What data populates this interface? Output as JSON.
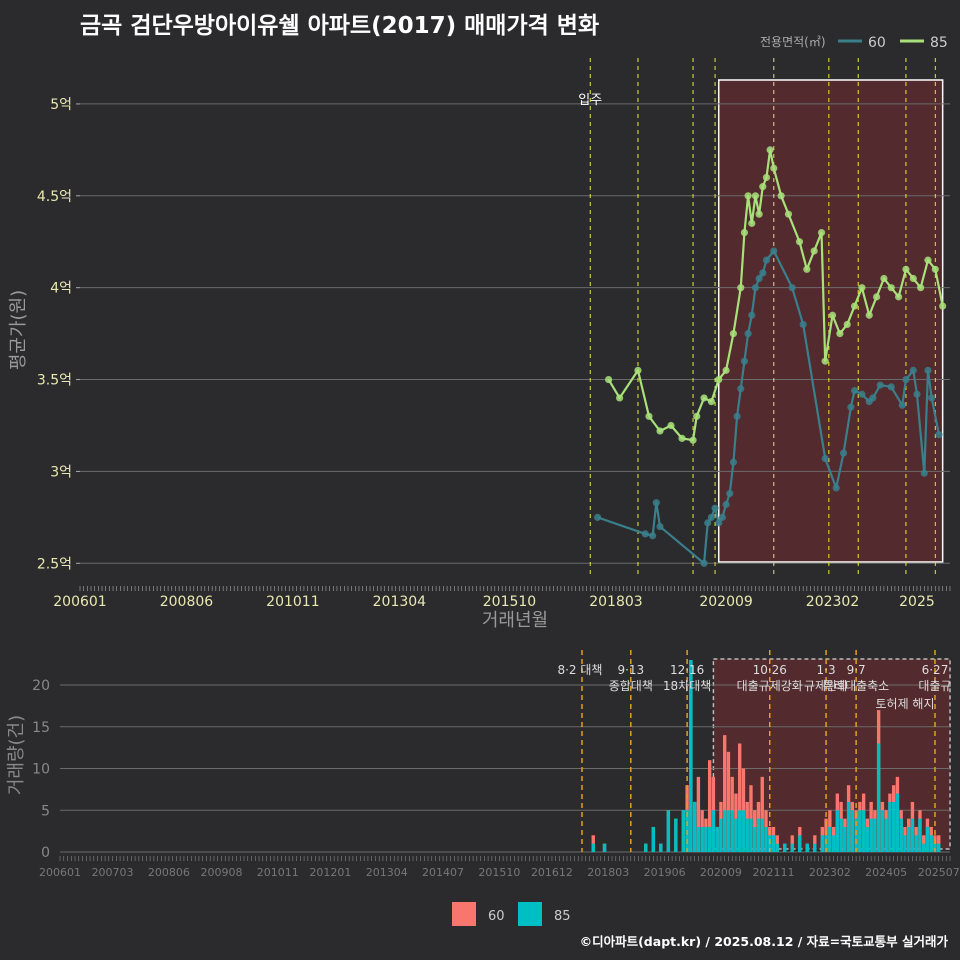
{
  "title": "금곡 검단우방아이유쉘 아파트(2017) 매매가격 변화",
  "footer": "©디아파트(dapt.kr) / 2025.08.12 / 자료=국토교통부 실거래가",
  "colors": {
    "background": "#2b2b2d",
    "grid": "#6b6b6b",
    "series_60_line": "#3a7f8c",
    "series_85_line": "#a8e07a",
    "bar_60": "#f8766d",
    "bar_85": "#00bfc4",
    "policy_line": "#e8e83a",
    "policy_line_vol": "#e0a020",
    "highlight_fill": "#5a2a2e",
    "highlight_border": "#ffffff"
  },
  "chart_data": [
    {
      "type": "line",
      "title": "금곡 검단우방아이유쉘 아파트(2017) 매매가격 변화",
      "xlabel": "거래년월",
      "ylabel": "평균가(원)",
      "ylim": [
        2.42,
        5.25
      ],
      "y_ticks": [
        2.5,
        3,
        3.5,
        4,
        4.5,
        5
      ],
      "y_tick_labels": [
        "2.5억",
        "3억",
        "3.5억",
        "4억",
        "4.5억",
        "5억"
      ],
      "x_tick_labels": [
        "200601",
        "200806",
        "201011",
        "201304",
        "201510",
        "201803",
        "202009",
        "202302",
        "2025"
      ],
      "legend_title": "전용면적(㎡)",
      "legend_position": "top-right",
      "grid": true,
      "annotation": "입주",
      "policy_lines": [
        "2017-08",
        "2018-09",
        "2019-12",
        "2020-06",
        "2021-10",
        "2023-01",
        "2023-09",
        "2024-10",
        "2025-06"
      ],
      "highlight_period": [
        "2020-07",
        "2025-08"
      ],
      "series": [
        {
          "name": "60",
          "points": [
            [
              "2017-10",
              2.75
            ],
            [
              "2018-11",
              2.66
            ],
            [
              "2019-01",
              2.65
            ],
            [
              "2019-02",
              2.83
            ],
            [
              "2019-03",
              2.7
            ],
            [
              "2020-03",
              2.5
            ],
            [
              "2020-04",
              2.72
            ],
            [
              "2020-05",
              2.75
            ],
            [
              "2020-06",
              2.8
            ],
            [
              "2020-07",
              2.72
            ],
            [
              "2020-08",
              2.75
            ],
            [
              "2020-09",
              2.82
            ],
            [
              "2020-10",
              2.88
            ],
            [
              "2020-11",
              3.05
            ],
            [
              "2020-12",
              3.3
            ],
            [
              "2021-01",
              3.45
            ],
            [
              "2021-02",
              3.6
            ],
            [
              "2021-03",
              3.75
            ],
            [
              "2021-04",
              3.85
            ],
            [
              "2021-05",
              4.0
            ],
            [
              "2021-06",
              4.05
            ],
            [
              "2021-07",
              4.08
            ],
            [
              "2021-08",
              4.15
            ],
            [
              "2021-10",
              4.2
            ],
            [
              "2022-03",
              4.0
            ],
            [
              "2022-06",
              3.8
            ],
            [
              "2022-12",
              3.07
            ],
            [
              "2023-03",
              2.91
            ],
            [
              "2023-05",
              3.1
            ],
            [
              "2023-07",
              3.35
            ],
            [
              "2023-08",
              3.44
            ],
            [
              "2023-10",
              3.42
            ],
            [
              "2023-12",
              3.38
            ],
            [
              "2024-01",
              3.4
            ],
            [
              "2024-03",
              3.47
            ],
            [
              "2024-06",
              3.46
            ],
            [
              "2024-09",
              3.36
            ],
            [
              "2024-10",
              3.5
            ],
            [
              "2024-12",
              3.55
            ],
            [
              "2025-01",
              3.42
            ],
            [
              "2025-03",
              2.99
            ],
            [
              "2025-04",
              3.55
            ],
            [
              "2025-05",
              3.4
            ],
            [
              "2025-07",
              3.2
            ]
          ]
        },
        {
          "name": "85",
          "points": [
            [
              "2018-01",
              3.5
            ],
            [
              "2018-04",
              3.4
            ],
            [
              "2018-09",
              3.55
            ],
            [
              "2018-12",
              3.3
            ],
            [
              "2019-03",
              3.22
            ],
            [
              "2019-06",
              3.25
            ],
            [
              "2019-09",
              3.18
            ],
            [
              "2019-12",
              3.17
            ],
            [
              "2020-01",
              3.3
            ],
            [
              "2020-03",
              3.4
            ],
            [
              "2020-05",
              3.38
            ],
            [
              "2020-07",
              3.5
            ],
            [
              "2020-09",
              3.55
            ],
            [
              "2020-11",
              3.75
            ],
            [
              "2021-01",
              4.0
            ],
            [
              "2021-02",
              4.3
            ],
            [
              "2021-03",
              4.5
            ],
            [
              "2021-04",
              4.35
            ],
            [
              "2021-05",
              4.5
            ],
            [
              "2021-06",
              4.4
            ],
            [
              "2021-07",
              4.55
            ],
            [
              "2021-08",
              4.6
            ],
            [
              "2021-09",
              4.75
            ],
            [
              "2021-10",
              4.65
            ],
            [
              "2021-12",
              4.5
            ],
            [
              "2022-02",
              4.4
            ],
            [
              "2022-05",
              4.25
            ],
            [
              "2022-07",
              4.1
            ],
            [
              "2022-09",
              4.2
            ],
            [
              "2022-11",
              4.3
            ],
            [
              "2022-12",
              3.6
            ],
            [
              "2023-02",
              3.85
            ],
            [
              "2023-04",
              3.75
            ],
            [
              "2023-06",
              3.8
            ],
            [
              "2023-08",
              3.9
            ],
            [
              "2023-10",
              4.0
            ],
            [
              "2023-12",
              3.85
            ],
            [
              "2024-02",
              3.95
            ],
            [
              "2024-04",
              4.05
            ],
            [
              "2024-06",
              4.0
            ],
            [
              "2024-08",
              3.95
            ],
            [
              "2024-10",
              4.1
            ],
            [
              "2024-12",
              4.05
            ],
            [
              "2025-02",
              4.0
            ],
            [
              "2025-04",
              4.15
            ],
            [
              "2025-06",
              4.1
            ],
            [
              "2025-08",
              3.9
            ]
          ]
        }
      ]
    },
    {
      "type": "bar",
      "ylabel": "거래량(건)",
      "ylim": [
        0,
        23
      ],
      "y_ticks": [
        0,
        5,
        10,
        15,
        20
      ],
      "y_tick_labels": [
        "0",
        "5",
        "10",
        "15",
        "20"
      ],
      "x_tick_labels": [
        "200601",
        "200703",
        "200806",
        "200908",
        "201011",
        "201201",
        "201304",
        "201407",
        "201510",
        "201612",
        "201803",
        "201906",
        "202009",
        "202111",
        "202302",
        "202405",
        "202507"
      ],
      "legend_position": "bottom",
      "policy_events": [
        {
          "date": "2017-08",
          "label": "8·2 대책"
        },
        {
          "date": "2018-09",
          "label": "9·13\n종합대책"
        },
        {
          "date": "2019-12",
          "label": "12·16\n18차대책"
        },
        {
          "date": "2021-10",
          "label": "10·26\n대출규제강화"
        },
        {
          "date": "2023-01",
          "label": "1·3\n규제완화"
        },
        {
          "date": "2023-09",
          "label": "9·7\n특례대출축소"
        },
        {
          "date": "2025-06",
          "label": "6·27\n대출규"
        }
      ],
      "extra_label": "토허제 해지",
      "series": [
        {
          "name": "60",
          "values": [
            [
              "2017-11",
              2
            ],
            [
              "2018-02",
              1
            ],
            [
              "2019-01",
              1
            ],
            [
              "2019-03",
              1
            ],
            [
              "2019-05",
              1
            ],
            [
              "2019-07",
              4
            ],
            [
              "2019-09",
              1
            ],
            [
              "2019-11",
              3
            ],
            [
              "2019-12",
              8
            ],
            [
              "2020-01",
              12
            ],
            [
              "2020-02",
              6
            ],
            [
              "2020-03",
              9
            ],
            [
              "2020-04",
              5
            ],
            [
              "2020-05",
              4
            ],
            [
              "2020-06",
              11
            ],
            [
              "2020-07",
              9
            ],
            [
              "2020-08",
              3
            ],
            [
              "2020-09",
              6
            ],
            [
              "2020-10",
              14
            ],
            [
              "2020-11",
              12
            ],
            [
              "2020-12",
              9
            ],
            [
              "2021-01",
              7
            ],
            [
              "2021-02",
              13
            ],
            [
              "2021-03",
              10
            ],
            [
              "2021-04",
              6
            ],
            [
              "2021-05",
              8
            ],
            [
              "2021-06",
              5
            ],
            [
              "2021-07",
              6
            ],
            [
              "2021-08",
              9
            ],
            [
              "2021-09",
              5
            ],
            [
              "2021-10",
              3
            ],
            [
              "2021-11",
              3
            ],
            [
              "2021-12",
              2
            ],
            [
              "2022-02",
              1
            ],
            [
              "2022-04",
              2
            ],
            [
              "2022-06",
              3
            ],
            [
              "2022-08",
              1
            ],
            [
              "2022-10",
              2
            ],
            [
              "2022-12",
              3
            ],
            [
              "2023-01",
              4
            ],
            [
              "2023-02",
              5
            ],
            [
              "2023-03",
              3
            ],
            [
              "2023-04",
              7
            ],
            [
              "2023-05",
              6
            ],
            [
              "2023-06",
              4
            ],
            [
              "2023-07",
              8
            ],
            [
              "2023-08",
              6
            ],
            [
              "2023-09",
              5
            ],
            [
              "2023-10",
              6
            ],
            [
              "2023-11",
              7
            ],
            [
              "2023-12",
              4
            ],
            [
              "2024-01",
              6
            ],
            [
              "2024-02",
              5
            ],
            [
              "2024-03",
              17
            ],
            [
              "2024-04",
              6
            ],
            [
              "2024-05",
              5
            ],
            [
              "2024-06",
              7
            ],
            [
              "2024-07",
              8
            ],
            [
              "2024-08",
              9
            ],
            [
              "2024-09",
              5
            ],
            [
              "2024-10",
              3
            ],
            [
              "2024-11",
              4
            ],
            [
              "2024-12",
              6
            ],
            [
              "2025-01",
              3
            ],
            [
              "2025-02",
              5
            ],
            [
              "2025-03",
              2
            ],
            [
              "2025-04",
              4
            ],
            [
              "2025-05",
              3
            ],
            [
              "2025-06",
              2
            ],
            [
              "2025-07",
              2
            ]
          ]
        },
        {
          "name": "85",
          "values": [
            [
              "2017-11",
              1
            ],
            [
              "2018-02",
              1
            ],
            [
              "2019-01",
              1
            ],
            [
              "2019-03",
              3
            ],
            [
              "2019-05",
              1
            ],
            [
              "2019-07",
              5
            ],
            [
              "2019-09",
              4
            ],
            [
              "2019-11",
              5
            ],
            [
              "2019-12",
              5
            ],
            [
              "2020-01",
              23
            ],
            [
              "2020-02",
              6
            ],
            [
              "2020-03",
              3
            ],
            [
              "2020-04",
              3
            ],
            [
              "2020-05",
              3
            ],
            [
              "2020-06",
              3
            ],
            [
              "2020-07",
              5
            ],
            [
              "2020-08",
              3
            ],
            [
              "2020-09",
              4
            ],
            [
              "2020-10",
              5
            ],
            [
              "2020-11",
              5
            ],
            [
              "2020-12",
              5
            ],
            [
              "2021-01",
              4
            ],
            [
              "2021-02",
              5
            ],
            [
              "2021-03",
              5
            ],
            [
              "2021-04",
              4
            ],
            [
              "2021-05",
              4
            ],
            [
              "2021-06",
              3
            ],
            [
              "2021-07",
              4
            ],
            [
              "2021-08",
              4
            ],
            [
              "2021-09",
              3
            ],
            [
              "2021-10",
              2
            ],
            [
              "2021-11",
              2
            ],
            [
              "2021-12",
              1
            ],
            [
              "2022-02",
              1
            ],
            [
              "2022-04",
              1
            ],
            [
              "2022-06",
              2
            ],
            [
              "2022-08",
              1
            ],
            [
              "2022-10",
              1
            ],
            [
              "2022-12",
              2
            ],
            [
              "2023-01",
              2
            ],
            [
              "2023-02",
              3
            ],
            [
              "2023-03",
              2
            ],
            [
              "2023-04",
              5
            ],
            [
              "2023-05",
              4
            ],
            [
              "2023-06",
              3
            ],
            [
              "2023-07",
              6
            ],
            [
              "2023-08",
              5
            ],
            [
              "2023-09",
              4
            ],
            [
              "2023-10",
              5
            ],
            [
              "2023-11",
              5
            ],
            [
              "2023-12",
              3
            ],
            [
              "2024-01",
              4
            ],
            [
              "2024-02",
              4
            ],
            [
              "2024-03",
              13
            ],
            [
              "2024-04",
              5
            ],
            [
              "2024-05",
              4
            ],
            [
              "2024-06",
              6
            ],
            [
              "2024-07",
              6
            ],
            [
              "2024-08",
              7
            ],
            [
              "2024-09",
              4
            ],
            [
              "2024-10",
              2
            ],
            [
              "2024-11",
              3
            ],
            [
              "2024-12",
              4
            ],
            [
              "2025-01",
              2
            ],
            [
              "2025-02",
              4
            ],
            [
              "2025-03",
              1
            ],
            [
              "2025-04",
              3
            ],
            [
              "2025-05",
              2
            ],
            [
              "2025-06",
              1
            ],
            [
              "2025-07",
              1
            ]
          ]
        }
      ]
    }
  ]
}
